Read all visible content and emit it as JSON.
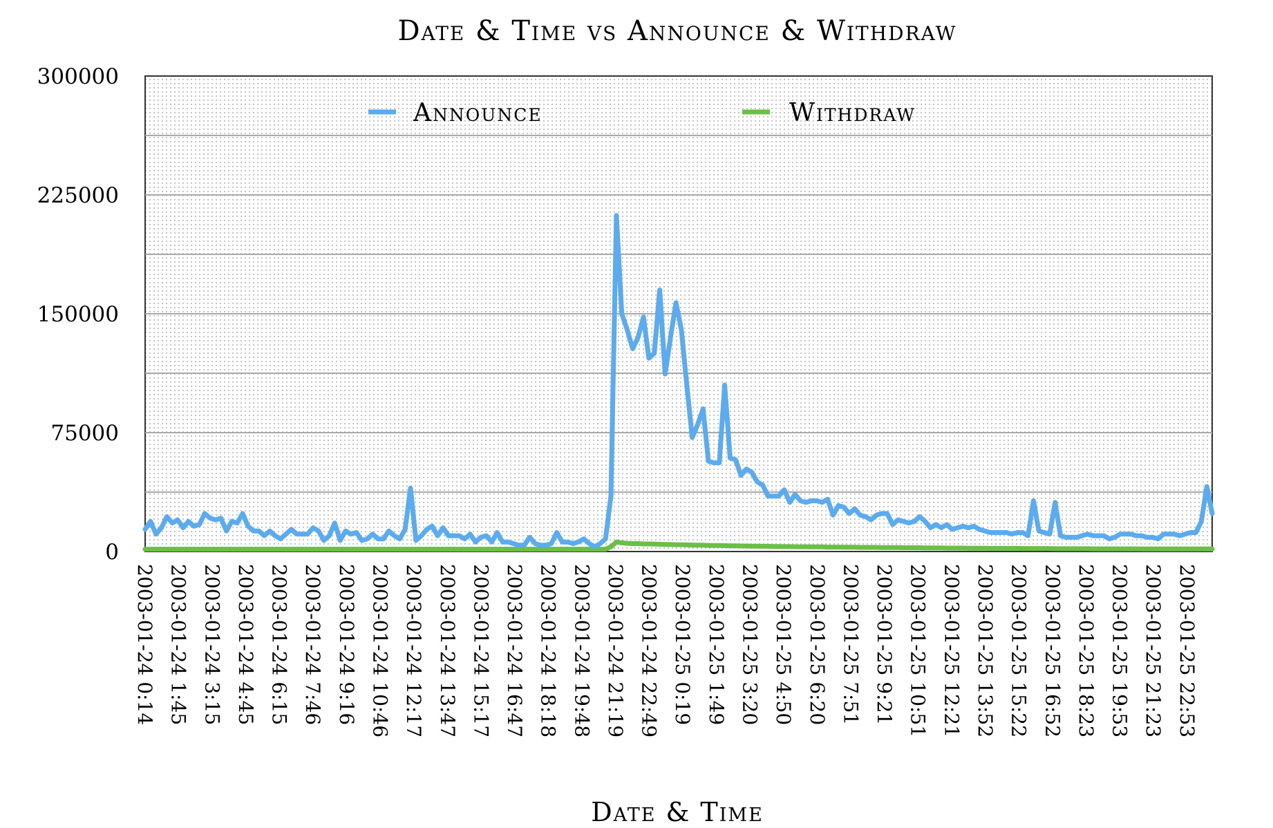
{
  "chart_data": {
    "type": "line",
    "title": "Date & Time vs Announce & Withdraw",
    "xlabel": "Date & Time",
    "ylabel": "",
    "ylim": [
      0,
      300000
    ],
    "yticks": [
      "0",
      "75000",
      "150000",
      "225000",
      "300000"
    ],
    "grid": true,
    "legend_position": "top",
    "xtick_labels": [
      "2003-01-24 0:14",
      "2003-01-24 1:45",
      "2003-01-24 3:15",
      "2003-01-24 4:45",
      "2003-01-24 6:15",
      "2003-01-24 7:46",
      "2003-01-24 9:16",
      "2003-01-24 10:46",
      "2003-01-24 12:17",
      "2003-01-24 13:47",
      "2003-01-24 15:17",
      "2003-01-24 16:47",
      "2003-01-24 18:18",
      "2003-01-24 19:48",
      "2003-01-24 21:19",
      "2003-01-24 22:49",
      "2003-01-25 0:19",
      "2003-01-25 1:49",
      "2003-01-25 3:20",
      "2003-01-25 4:50",
      "2003-01-25 6:20",
      "2003-01-25 7:51",
      "2003-01-25 9:21",
      "2003-01-25 10:51",
      "2003-01-25 12:21",
      "2003-01-25 13:52",
      "2003-01-25 15:22",
      "2003-01-25 16:52",
      "2003-01-25 18:23",
      "2003-01-25 19:53",
      "2003-01-25 21:23",
      "2003-01-25 22:53"
    ],
    "series": [
      {
        "name": "Announce",
        "color": "#5aabf0",
        "values": [
          14000,
          19000,
          11000,
          15000,
          22000,
          18000,
          20000,
          15000,
          19000,
          16000,
          17000,
          24000,
          21000,
          20000,
          21000,
          13000,
          19000,
          18000,
          24000,
          16000,
          13000,
          13000,
          10000,
          13000,
          10000,
          8000,
          11000,
          14000,
          11000,
          11000,
          11000,
          15000,
          13000,
          7000,
          10000,
          18000,
          7000,
          13000,
          11000,
          12000,
          7000,
          8000,
          11000,
          8000,
          8000,
          13000,
          10000,
          8000,
          14000,
          40000,
          7000,
          10000,
          14000,
          16000,
          10000,
          15000,
          10000,
          10000,
          10000,
          8000,
          11000,
          6000,
          9000,
          10000,
          6000,
          12000,
          6000,
          6000,
          5000,
          4000,
          4000,
          9000,
          5000,
          4000,
          4000,
          5000,
          12000,
          6000,
          6000,
          5000,
          6000,
          8000,
          5000,
          3000,
          5000,
          8000,
          35000,
          212000,
          150000,
          140000,
          128000,
          135000,
          148000,
          122000,
          125000,
          165000,
          112000,
          135000,
          157000,
          140000,
          105000,
          72000,
          80000,
          90000,
          57000,
          56000,
          56000,
          105000,
          59000,
          58000,
          48000,
          52000,
          50000,
          44000,
          42000,
          35000,
          35000,
          35000,
          39000,
          31000,
          36000,
          32000,
          31000,
          32000,
          32000,
          31000,
          33000,
          23000,
          29000,
          28000,
          24000,
          27000,
          23000,
          22000,
          20000,
          23000,
          24000,
          24000,
          17000,
          20000,
          19000,
          18000,
          19000,
          22000,
          19000,
          15000,
          17000,
          15000,
          17000,
          14000,
          15000,
          16000,
          15000,
          16000,
          14000,
          13000,
          12000,
          12000,
          12000,
          12000,
          11000,
          12000,
          12000,
          10000,
          32000,
          13000,
          12000,
          11000,
          31000,
          10000,
          9000,
          9000,
          9000,
          10000,
          11000,
          10000,
          10000,
          10000,
          8000,
          9000,
          11000,
          11000,
          11000,
          10000,
          10000,
          9000,
          9000,
          8000,
          11000,
          11000,
          11000,
          10000,
          11000,
          12000,
          12000,
          19000,
          41000,
          24000
        ]
      },
      {
        "name": "Withdraw",
        "color": "#6bbf47",
        "values": [
          1500,
          1500,
          1500,
          1500,
          1500,
          1500,
          1500,
          1500,
          1500,
          1500,
          1500,
          1500,
          1500,
          1500,
          1500,
          1500,
          1500,
          1500,
          1500,
          1500,
          1500,
          1500,
          1500,
          1500,
          1500,
          1500,
          1500,
          1500,
          1500,
          1500,
          1500,
          1500,
          1500,
          1500,
          1500,
          1500,
          1500,
          1500,
          1500,
          1500,
          1500,
          1500,
          1500,
          1500,
          1500,
          1500,
          1500,
          1500,
          1500,
          1500,
          1500,
          1500,
          1500,
          1500,
          1500,
          1500,
          1500,
          1500,
          1500,
          1500,
          1500,
          1500,
          1500,
          1500,
          1500,
          1500,
          1500,
          1500,
          1500,
          1500,
          1500,
          1500,
          1500,
          1500,
          1500,
          1500,
          1500,
          1500,
          1500,
          1500,
          1500,
          1500,
          1500,
          1500,
          1500,
          1500,
          3000,
          6000,
          5500,
          5200,
          5000,
          5000,
          4800,
          4800,
          4700,
          4600,
          4500,
          4400,
          4300,
          4300,
          4200,
          4100,
          4000,
          4000,
          3900,
          3800,
          3800,
          3700,
          3600,
          3600,
          3500,
          3500,
          3400,
          3400,
          3300,
          3300,
          3200,
          3200,
          3100,
          3100,
          3000,
          3000,
          3000,
          2900,
          2900,
          2900,
          2800,
          2800,
          2800,
          2700,
          2700,
          2700,
          2600,
          2600,
          2600,
          2600,
          2500,
          2500,
          2500,
          2500,
          2400,
          2400,
          2400,
          2400,
          2300,
          2300,
          2300,
          2300,
          2200,
          2200,
          2200,
          2200,
          2100,
          2100,
          2100,
          2100,
          2000,
          2000,
          2000,
          2000,
          2000,
          2000,
          1900,
          1900,
          1900,
          1900,
          1900,
          1900,
          1800,
          1800,
          1800,
          1800,
          1800,
          1800,
          1800,
          1700,
          1700,
          1700,
          1700,
          1700,
          1700,
          1700,
          1700,
          1700,
          1600,
          1600,
          1600,
          1600,
          1600,
          1600,
          1600,
          1600,
          1600,
          1600,
          1600,
          1600,
          1600,
          1600
        ]
      }
    ]
  }
}
